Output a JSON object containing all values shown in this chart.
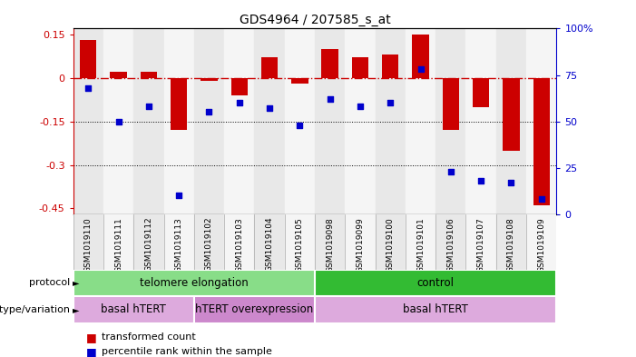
{
  "title": "GDS4964 / 207585_s_at",
  "samples": [
    "GSM1019110",
    "GSM1019111",
    "GSM1019112",
    "GSM1019113",
    "GSM1019102",
    "GSM1019103",
    "GSM1019104",
    "GSM1019105",
    "GSM1019098",
    "GSM1019099",
    "GSM1019100",
    "GSM1019101",
    "GSM1019106",
    "GSM1019107",
    "GSM1019108",
    "GSM1019109"
  ],
  "bar_values": [
    0.13,
    0.02,
    0.02,
    -0.18,
    -0.01,
    -0.06,
    0.07,
    -0.02,
    0.1,
    0.07,
    0.08,
    0.15,
    -0.18,
    -0.1,
    -0.25,
    -0.44
  ],
  "blue_values": [
    68,
    50,
    58,
    10,
    55,
    60,
    57,
    48,
    62,
    58,
    60,
    78,
    23,
    18,
    17,
    8
  ],
  "bar_color": "#cc0000",
  "blue_color": "#0000cc",
  "dash_color": "#cc0000",
  "ylim_left": [
    -0.47,
    0.17
  ],
  "ylim_right": [
    0,
    100
  ],
  "yticks_left": [
    0.15,
    0.0,
    -0.15,
    -0.3,
    -0.45
  ],
  "ytick_labels_left": [
    "0.15",
    "0",
    "-0.15",
    "-0.3",
    "-0.45"
  ],
  "ytick_labels_right": [
    "100%",
    "75",
    "50",
    "25",
    "0"
  ],
  "yticks_right": [
    100,
    75,
    50,
    25,
    0
  ],
  "dotted_lines": [
    -0.15,
    -0.3
  ],
  "protocol_groups": [
    {
      "label": "telomere elongation",
      "start": 0,
      "end": 8,
      "color": "#88dd88"
    },
    {
      "label": "control",
      "start": 8,
      "end": 16,
      "color": "#33bb33"
    }
  ],
  "genotype_groups": [
    {
      "label": "basal hTERT",
      "start": 0,
      "end": 4,
      "color": "#ddaadd"
    },
    {
      "label": "hTERT overexpression",
      "start": 4,
      "end": 8,
      "color": "#cc88cc"
    },
    {
      "label": "basal hTERT",
      "start": 8,
      "end": 16,
      "color": "#ddaadd"
    }
  ],
  "bg_color": "#ffffff",
  "sample_bg_odd": "#e8e8e8",
  "sample_bg_even": "#f5f5f5"
}
